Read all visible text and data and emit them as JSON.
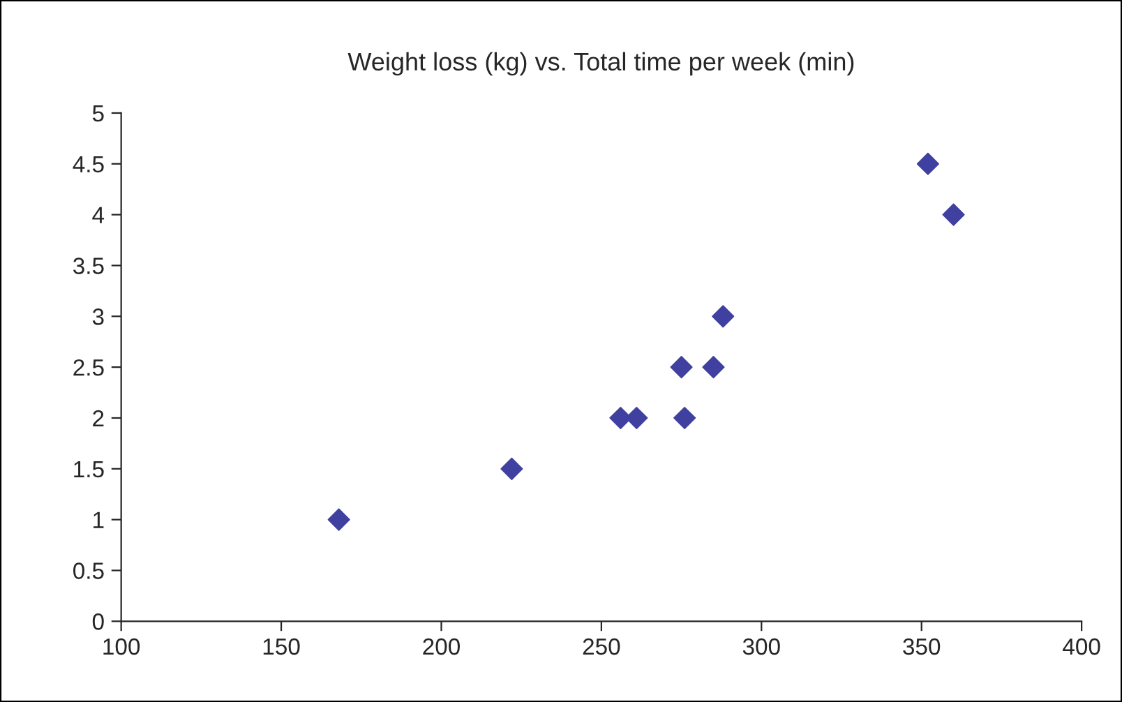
{
  "chart_data": {
    "type": "scatter",
    "title": "Weight loss (kg) vs. Total time per week (min)",
    "x": [
      168,
      222,
      256,
      261,
      275,
      276,
      285,
      288,
      352,
      360
    ],
    "series": [
      {
        "color": "#4040a0",
        "values": [
          1,
          1.5,
          2,
          2,
          2.5,
          2,
          2.5,
          3,
          4.5,
          4
        ]
      }
    ],
    "xlim": [
      100,
      400
    ],
    "xticks": [
      100,
      150,
      200,
      250,
      300,
      350,
      400
    ],
    "ylim": [
      0,
      5
    ],
    "yticks": [
      0,
      0.5,
      1,
      1.5,
      2,
      2.5,
      3,
      3.5,
      4,
      4.5,
      5
    ],
    "marker": "diamond",
    "grid": false,
    "legend": false
  }
}
